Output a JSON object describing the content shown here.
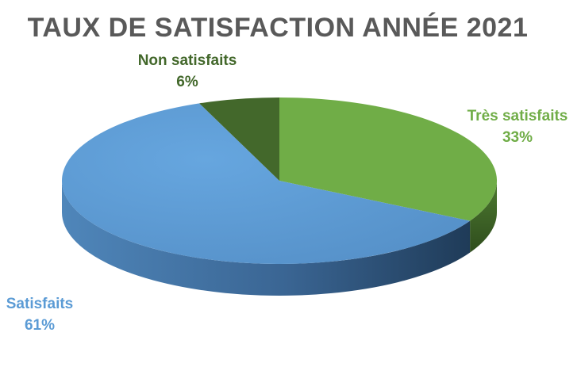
{
  "chart_data": {
    "type": "pie",
    "title": "TAUX DE SATISFACTION ANNÉE 2021",
    "slices": [
      {
        "name": "Très satisfaits",
        "value": 33,
        "label": "33%",
        "color": "#70ad47",
        "side_color": "#4a7a2c"
      },
      {
        "name": "Satisfaits",
        "value": 61,
        "label": "61%",
        "color": "#5b9bd5",
        "side_color": "#3a6a99"
      },
      {
        "name": "Non satisfaits",
        "value": 6,
        "label": "6%",
        "color": "#43682b",
        "side_color": "#2d4a1c"
      }
    ],
    "legend": "none",
    "style": "3d"
  }
}
